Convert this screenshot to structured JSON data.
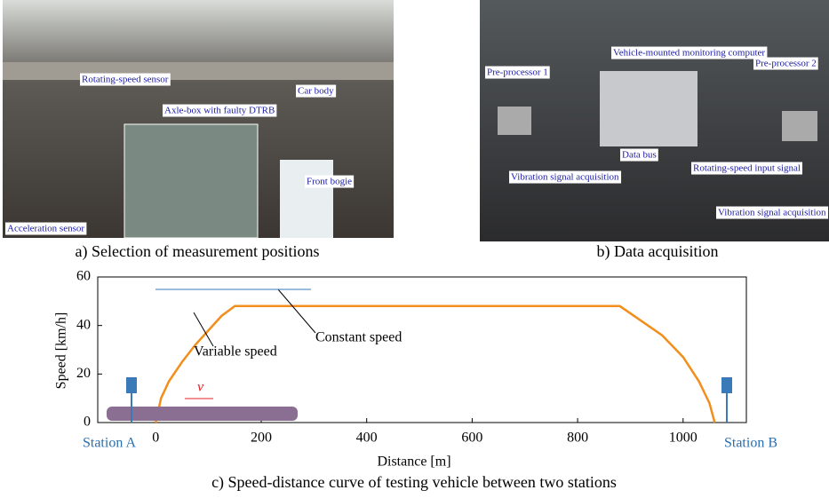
{
  "panels": [
    {
      "caption": "a) Selection of measurement positions",
      "labels": [
        "Rotating-speed sensor",
        "Axle-box with faulty DTRB",
        "Car body",
        "Front bogie",
        "Acceleration sensor"
      ]
    },
    {
      "caption": "b) Data acquisition",
      "labels": [
        "Vehicle-mounted monitoring computer",
        "Pre-processor 1",
        "Pre-processor 2",
        "Vibration signal acquisition",
        "Data bus",
        "Rotating-speed input signal",
        "Vibration signal acquisition"
      ]
    }
  ],
  "chart_data": {
    "type": "line",
    "caption": "c) Speed-distance curve of testing vehicle between two stations",
    "xlabel": "Distance [m]",
    "ylabel": "Speed [km/h]",
    "x": [
      0,
      10,
      25,
      50,
      75,
      100,
      125,
      150,
      200,
      400,
      600,
      800,
      880,
      920,
      960,
      1000,
      1030,
      1050,
      1060
    ],
    "series": [
      {
        "color": "#f28e1c",
        "values": [
          0,
          10,
          17,
          25,
          32,
          38,
          44,
          48,
          48,
          48,
          48,
          48,
          48,
          42,
          36,
          27,
          17,
          8,
          0
        ]
      }
    ],
    "xlim": [
      -110,
      1120
    ],
    "xticks": [
      0,
      200,
      400,
      600,
      800,
      1000
    ],
    "ylim": [
      0,
      60
    ],
    "yticks": [
      0,
      20,
      40,
      60
    ],
    "annotations": [
      "Variable speed",
      "Constant speed",
      "Station A",
      "Station B",
      "v"
    ]
  }
}
